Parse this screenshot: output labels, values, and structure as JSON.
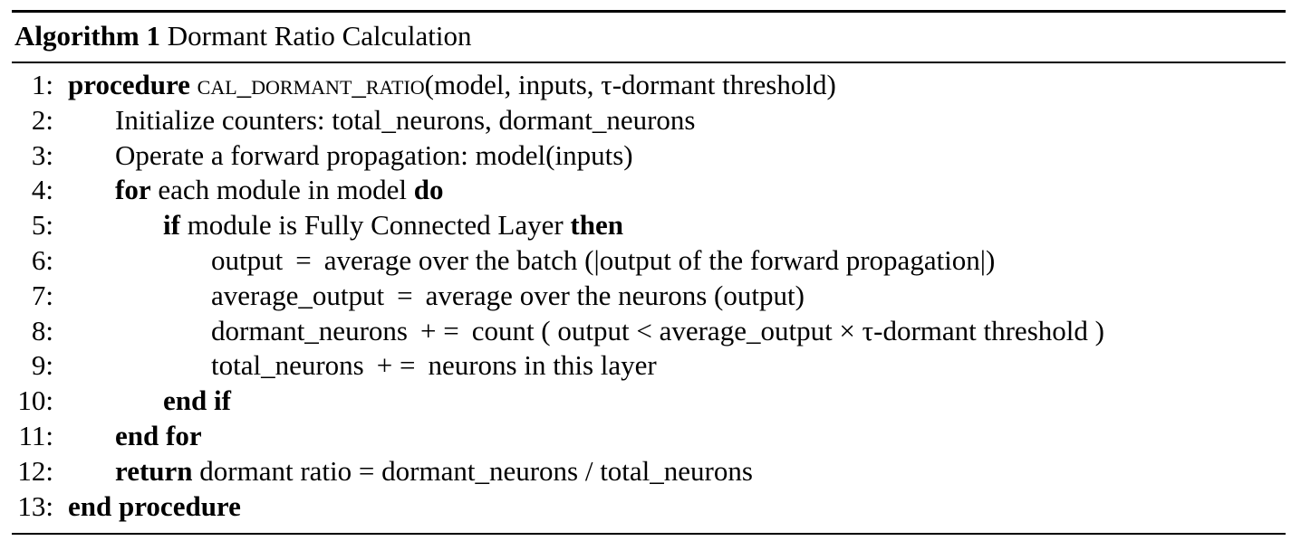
{
  "algorithm": {
    "caption_label": "Algorithm 1",
    "caption_title": "Dormant Ratio Calculation",
    "lines": [
      {
        "num": "1:",
        "kw1": "procedure",
        "name": "cal_dormant_ratio",
        "text": "(model, inputs, τ-dormant threshold)"
      },
      {
        "num": "2:",
        "text": "Initialize counters: total_neurons, dormant_neurons"
      },
      {
        "num": "3:",
        "text": "Operate a forward propagation: model(inputs)"
      },
      {
        "num": "4:",
        "kw1": "for",
        "text": "each module in model",
        "kw2": "do"
      },
      {
        "num": "5:",
        "kw1": "if",
        "text": "module is Fully Connected Layer",
        "kw2": "then"
      },
      {
        "num": "6:",
        "lhs": "output",
        "op": "=",
        "rhs": "average over the batch (|output of the forward propagation|)"
      },
      {
        "num": "7:",
        "lhs": "average_output",
        "op": "=",
        "rhs": "average over the neurons (output)"
      },
      {
        "num": "8:",
        "lhs": "dormant_neurons",
        "op": "+ =",
        "rhs": "count ( output < average_output  × τ-dormant threshold )"
      },
      {
        "num": "9:",
        "lhs": "total_neurons",
        "op": "+ =",
        "rhs": "neurons in this layer"
      },
      {
        "num": "10:",
        "kw1": "end if"
      },
      {
        "num": "11:",
        "kw1": "end for"
      },
      {
        "num": "12:",
        "kw1": "return",
        "text": "dormant ratio = dormant_neurons / total_neurons"
      },
      {
        "num": "13:",
        "kw1": "end procedure"
      }
    ]
  }
}
